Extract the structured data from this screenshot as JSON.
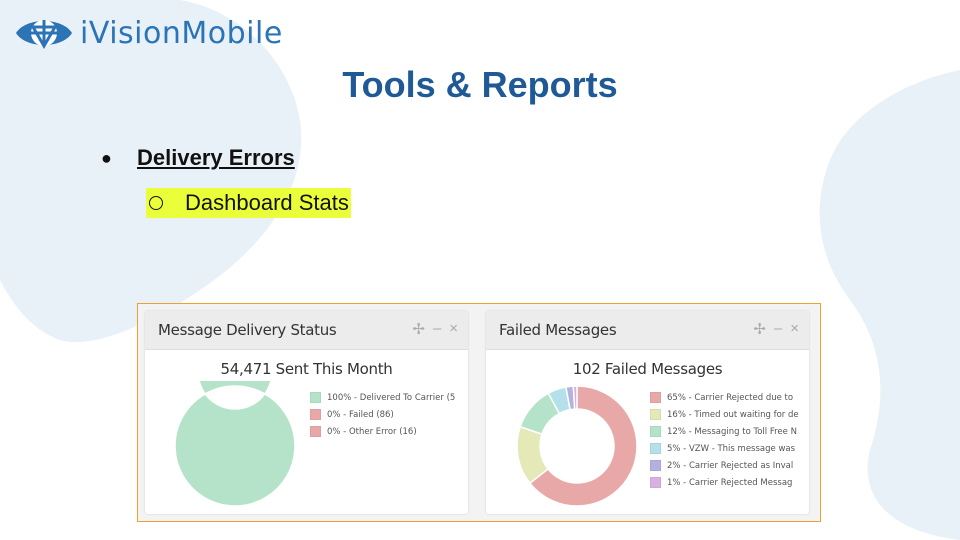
{
  "brand": {
    "logo_text": "iVisionMobile",
    "color": "#2b74b6"
  },
  "slide": {
    "title": "Tools & Reports",
    "bullet_1": "Delivery Errors",
    "bullet_2": "Dashboard Stats",
    "highlight_color": "#eaff3a"
  },
  "icons": {
    "move": "move-icon",
    "minimize": "minimize-icon",
    "close": "close-icon"
  },
  "panels": [
    {
      "title": "Message Delivery Status",
      "tools": [
        "✢",
        "–",
        "×"
      ],
      "chart_data": {
        "type": "pie",
        "title": "54,471 Sent This Month",
        "series": [
          {
            "name": "100% - Delivered To Carrier (5",
            "value": 100,
            "color": "#b5e3c9"
          },
          {
            "name": "0% - Failed (86)",
            "value": 0,
            "color": "#e9a8a8"
          },
          {
            "name": "0% - Other Error (16)",
            "value": 0,
            "color": "#e9a8a8"
          }
        ]
      }
    },
    {
      "title": "Failed Messages",
      "tools": [
        "✢",
        "–",
        "×"
      ],
      "chart_data": {
        "type": "pie",
        "title": "102 Failed Messages",
        "series": [
          {
            "name": "65% - Carrier Rejected due to",
            "value": 65,
            "color": "#e9a8a8"
          },
          {
            "name": "16% - Timed out waiting for de",
            "value": 16,
            "color": "#e5e8b7"
          },
          {
            "name": "12% - Messaging to Toll Free N",
            "value": 12,
            "color": "#b5e3c9"
          },
          {
            "name": "5% - VZW - This message was",
            "value": 5,
            "color": "#b3e0ea"
          },
          {
            "name": "2% - Carrier Rejected as Inval",
            "value": 2,
            "color": "#b4b0e0"
          },
          {
            "name": "1% - Carrier Rejected Messag",
            "value": 1,
            "color": "#d8b0e4"
          }
        ]
      }
    }
  ]
}
